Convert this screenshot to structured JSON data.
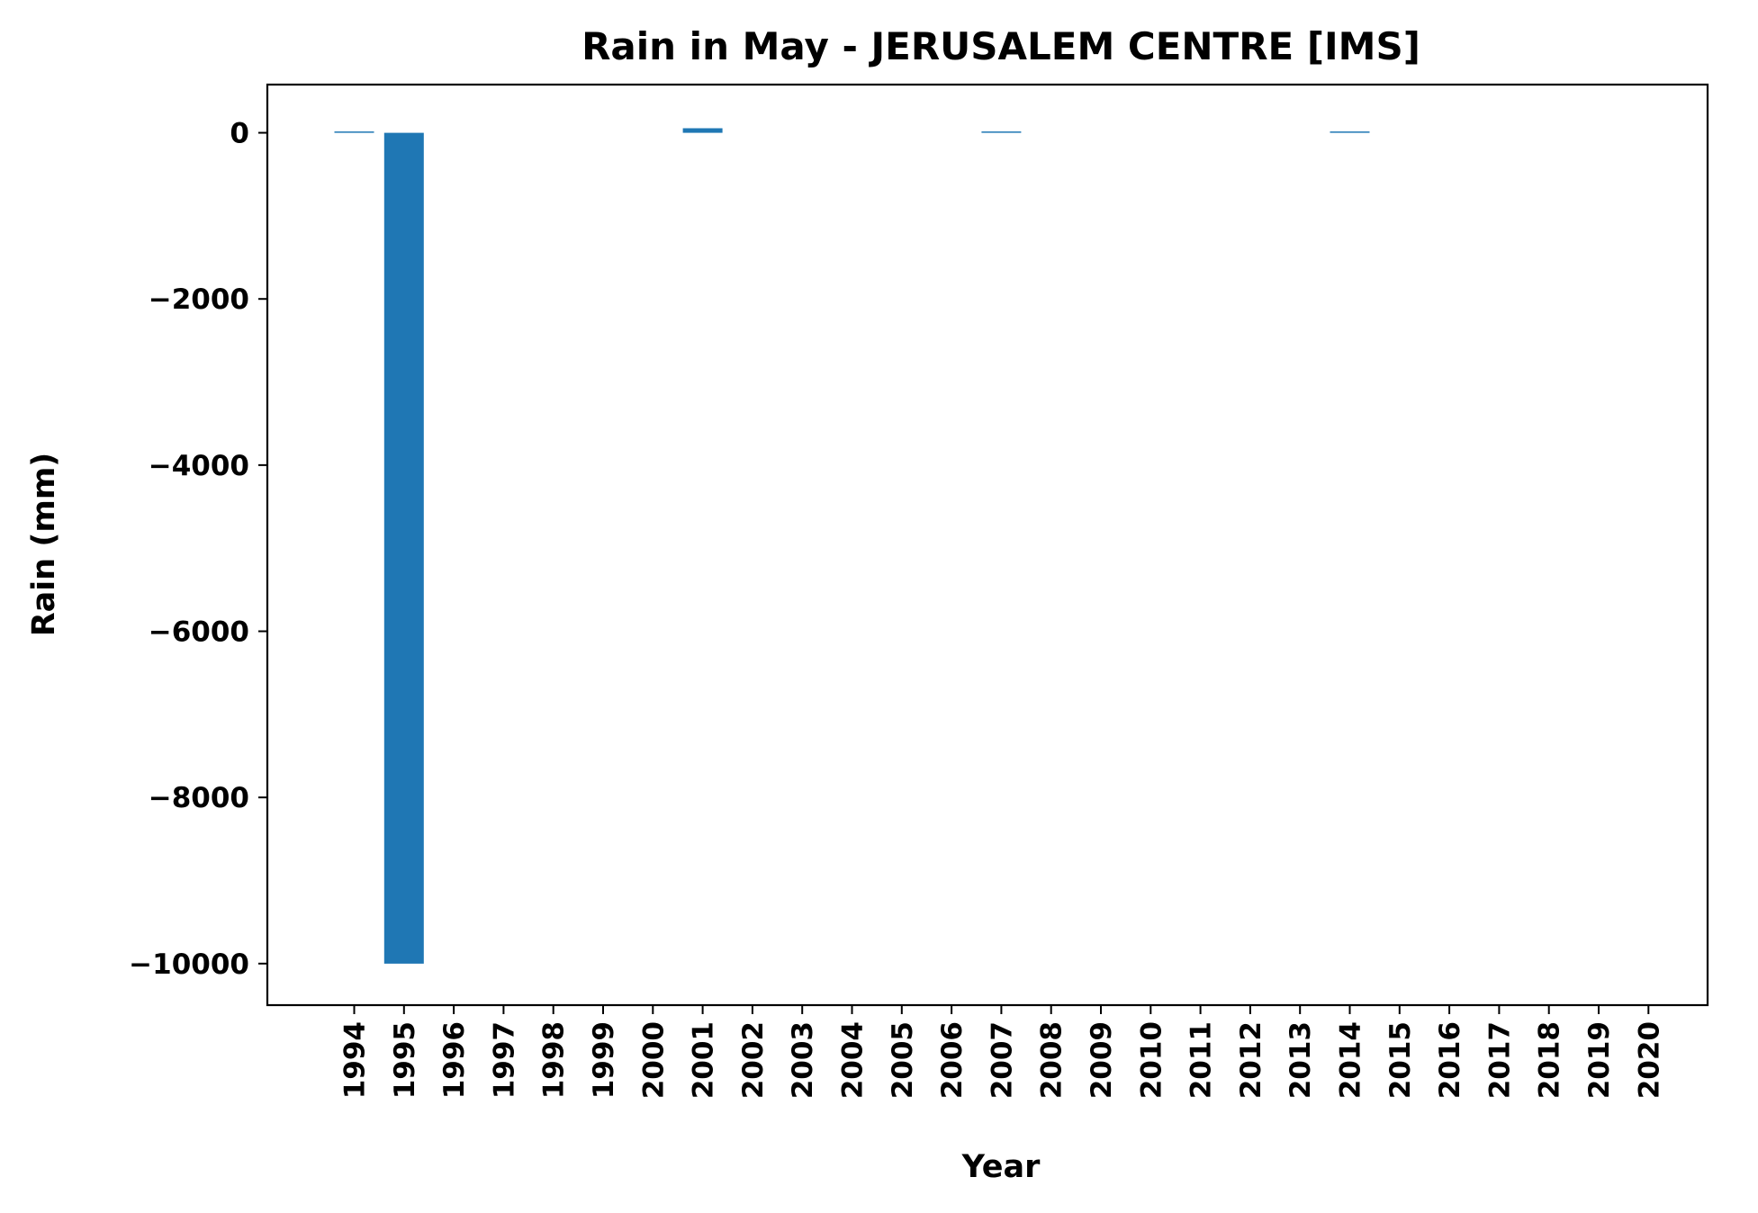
{
  "chart_data": {
    "type": "bar",
    "title": "Rain in May - JERUSALEM CENTRE [IMS]",
    "xlabel": "Year",
    "ylabel": "Rain (mm)",
    "categories": [
      "1994",
      "1995",
      "1996",
      "1997",
      "1998",
      "1999",
      "2000",
      "2001",
      "2002",
      "2003",
      "2004",
      "2005",
      "2006",
      "2007",
      "2008",
      "2009",
      "2010",
      "2011",
      "2012",
      "2013",
      "2014",
      "2015",
      "2016",
      "2017",
      "2018",
      "2019",
      "2020"
    ],
    "values": [
      2,
      -10000,
      0,
      0,
      0,
      0,
      0,
      55,
      0,
      0,
      0,
      0,
      0,
      2,
      0,
      0,
      0,
      0,
      0,
      0,
      2,
      0,
      0,
      0,
      0,
      0,
      0
    ],
    "ylim": [
      -10500,
      580
    ],
    "yticks": [
      0,
      -2000,
      -4000,
      -6000,
      -8000,
      -10000
    ],
    "ytick_labels": [
      "0",
      "−2000",
      "−4000",
      "−6000",
      "−8000",
      "−10000"
    ],
    "bar_color": "#1f77b4",
    "grid": false,
    "legend": "none"
  }
}
